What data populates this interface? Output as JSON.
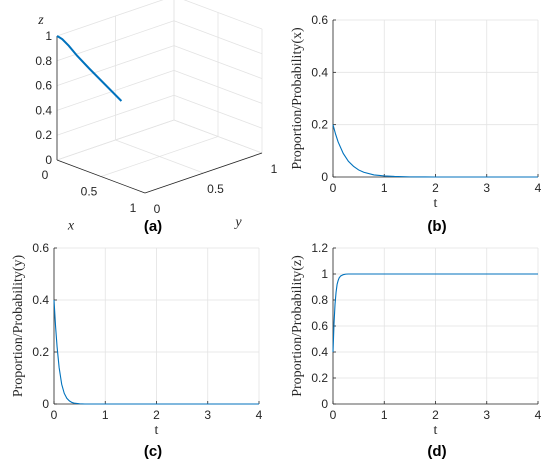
{
  "colors": {
    "line": "#0072BD",
    "grid": "#e3e3e3",
    "axis": "#262626"
  },
  "chart_data": [
    {
      "panel_label": "(a)",
      "type": "line",
      "projection": "3d",
      "xlabel": "x",
      "ylabel": "y",
      "zlabel": "z",
      "xlim": [
        0,
        1
      ],
      "ylim": [
        0,
        1
      ],
      "zlim": [
        0,
        1
      ],
      "xticks": [
        "0",
        "0.5",
        "1"
      ],
      "yticks": [
        "0",
        "0.5",
        "1"
      ],
      "zticks": [
        "0",
        "0.2",
        "0.4",
        "0.6",
        "0.8",
        "1"
      ],
      "grid": true,
      "series": [
        {
          "x": [
            0.2,
            0.15,
            0.1,
            0.07,
            0.04,
            0.02,
            0.01,
            0.0
          ],
          "y": [
            0.4,
            0.3,
            0.2,
            0.12,
            0.07,
            0.03,
            0.01,
            0.0
          ],
          "z": [
            0.4,
            0.55,
            0.7,
            0.82,
            0.91,
            0.97,
            0.99,
            1.0
          ]
        }
      ]
    },
    {
      "panel_label": "(b)",
      "type": "line",
      "xlabel": "t",
      "ylabel": "Proportion/Probability(x)",
      "xlim": [
        0,
        4
      ],
      "ylim": [
        0,
        0.6
      ],
      "xticks": [
        "0",
        "1",
        "2",
        "3",
        "4"
      ],
      "yticks": [
        "0",
        "0.2",
        "0.4",
        "0.6"
      ],
      "grid": true,
      "series": [
        {
          "x": [
            0,
            0.05,
            0.1,
            0.2,
            0.3,
            0.4,
            0.5,
            0.6,
            0.8,
            1.0,
            1.2,
            1.5,
            1.8,
            2.0,
            2.5,
            3.0,
            3.5,
            4.0
          ],
          "y": [
            0.2,
            0.164,
            0.134,
            0.09,
            0.06,
            0.041,
            0.027,
            0.018,
            0.008,
            0.004,
            0.002,
            0.0005,
            0.0001,
            0.0,
            0.0,
            0.0,
            0.0,
            0.0
          ]
        }
      ]
    },
    {
      "panel_label": "(c)",
      "type": "line",
      "xlabel": "t",
      "ylabel": "Proportion/Probability(y)",
      "xlim": [
        0,
        4
      ],
      "ylim": [
        0,
        0.6
      ],
      "xticks": [
        "0",
        "1",
        "2",
        "3",
        "4"
      ],
      "yticks": [
        "0",
        "0.2",
        "0.4",
        "0.6"
      ],
      "grid": true,
      "series": [
        {
          "x": [
            0,
            0.03,
            0.06,
            0.1,
            0.15,
            0.2,
            0.25,
            0.3,
            0.35,
            0.4,
            0.5,
            0.6,
            1.0,
            2.0,
            3.0,
            4.0
          ],
          "y": [
            0.4,
            0.3,
            0.22,
            0.14,
            0.076,
            0.041,
            0.022,
            0.012,
            0.006,
            0.003,
            0.001,
            0.0,
            0.0,
            0.0,
            0.0,
            0.0
          ]
        }
      ]
    },
    {
      "panel_label": "(d)",
      "type": "line",
      "xlabel": "t",
      "ylabel": "Proportion/Probability(z)",
      "xlim": [
        0,
        4
      ],
      "ylim": [
        0,
        1.2
      ],
      "xticks": [
        "0",
        "1",
        "2",
        "3",
        "4"
      ],
      "yticks": [
        "0",
        "0.2",
        "0.4",
        "0.6",
        "0.8",
        "1",
        "1.2"
      ],
      "grid": true,
      "series": [
        {
          "x": [
            0,
            0.02,
            0.04,
            0.06,
            0.08,
            0.1,
            0.12,
            0.15,
            0.2,
            0.25,
            0.3,
            0.4,
            0.5,
            1.0,
            2.0,
            3.0,
            4.0
          ],
          "y": [
            0.4,
            0.62,
            0.77,
            0.86,
            0.92,
            0.95,
            0.97,
            0.985,
            0.995,
            0.999,
            1.0,
            1.0,
            1.0,
            1.0,
            1.0,
            1.0,
            1.0
          ]
        }
      ]
    }
  ]
}
